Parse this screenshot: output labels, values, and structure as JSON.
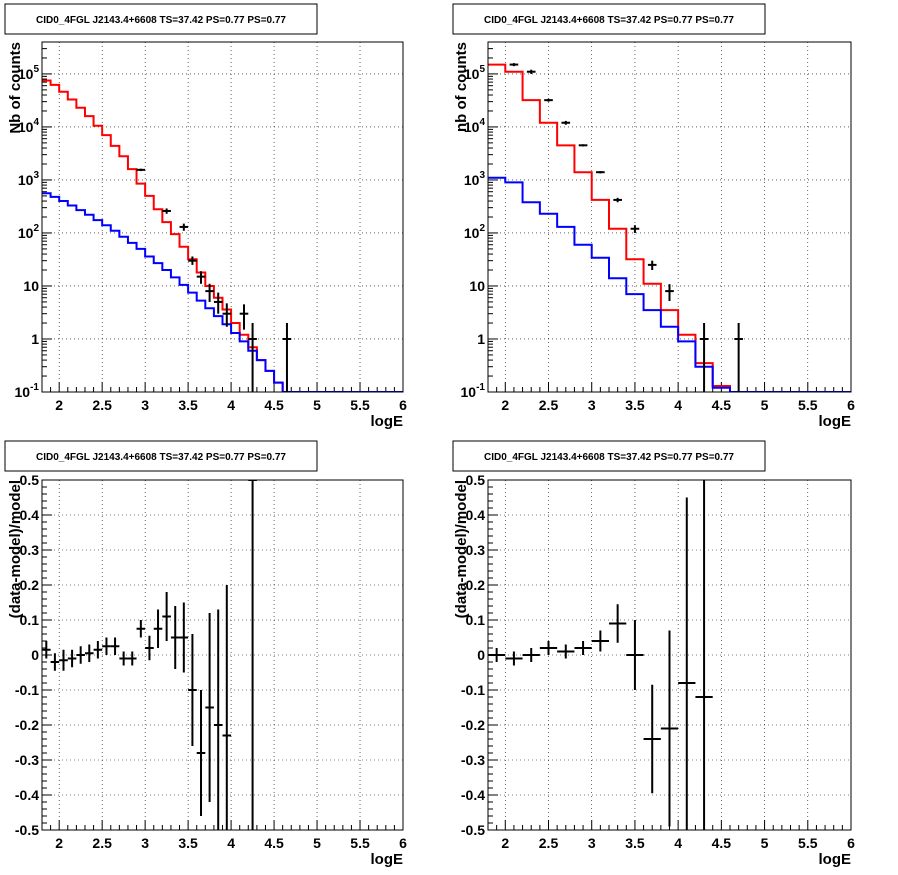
{
  "chart_data": [
    {
      "type": "step-histogram",
      "title": "CID0_4FGL J2143.4+6608 TS=37.42 PS=0.77 PS=0.77",
      "xlabel": "logE",
      "ylabel": "Nb of counts",
      "xlim": [
        1.8,
        6
      ],
      "ylim": [
        0.1,
        400000
      ],
      "y_scale": "log",
      "x_ticks": [
        "2",
        "2.5",
        "3",
        "3.5",
        "4",
        "4.5",
        "5",
        "5.5",
        "6"
      ],
      "y_ticks": [
        "10^-1",
        "1",
        "10",
        "10^2",
        "10^3",
        "10^4",
        "10^5"
      ],
      "grid": true,
      "bin_edges": [
        1.8,
        1.9,
        2.0,
        2.1,
        2.2,
        2.3,
        2.4,
        2.5,
        2.6,
        2.7,
        2.8,
        2.9,
        3.0,
        3.1,
        3.2,
        3.3,
        3.4,
        3.5,
        3.6,
        3.7,
        3.8,
        3.9,
        4.0,
        4.1,
        4.2,
        4.3,
        4.4,
        4.5,
        4.6,
        4.7,
        4.8,
        4.9,
        5.0,
        5.1,
        5.2,
        5.3,
        5.4,
        5.5,
        5.6,
        5.7,
        5.8,
        5.9,
        6.0
      ],
      "series": [
        {
          "color": "#ff0000",
          "values": [
            75000,
            62000,
            46000,
            33000,
            23000,
            16000,
            10500,
            7000,
            4400,
            2800,
            1600,
            850,
            500,
            280,
            160,
            95,
            55,
            32,
            18,
            10,
            6,
            3.6,
            2.0,
            1.2,
            0.7,
            0.4,
            0.25,
            0.15,
            0.1,
            0.1,
            0.1,
            0.1,
            0.1,
            0.1,
            0.1,
            0.1,
            0.1,
            0.1,
            0.1,
            0.1,
            0.1,
            0.1
          ]
        },
        {
          "color": "#0000ff",
          "values": [
            560,
            480,
            400,
            330,
            270,
            220,
            175,
            140,
            110,
            85,
            65,
            50,
            36,
            27,
            20,
            14.5,
            10.5,
            7.5,
            5.3,
            3.8,
            2.7,
            1.9,
            1.3,
            0.9,
            0.6,
            0.4,
            0.25,
            0.15,
            0.1,
            0.1,
            0.1,
            0.1,
            0.1,
            0.1,
            0.1,
            0.1,
            0.1,
            0.1,
            0.1,
            0.1,
            0.1,
            0.1
          ]
        }
      ],
      "data_points": [
        {
          "x": 2.95,
          "y": 1550,
          "ylo": 1470,
          "yhi": 1630
        },
        {
          "x": 3.25,
          "y": 260,
          "ylo": 230,
          "yhi": 290
        },
        {
          "x": 3.45,
          "y": 130,
          "ylo": 110,
          "yhi": 150
        },
        {
          "x": 3.55,
          "y": 30,
          "ylo": 25,
          "yhi": 36
        },
        {
          "x": 3.65,
          "y": 15,
          "ylo": 11,
          "yhi": 19
        },
        {
          "x": 3.75,
          "y": 8,
          "ylo": 5,
          "yhi": 11
        },
        {
          "x": 3.85,
          "y": 5,
          "ylo": 3,
          "yhi": 7.5
        },
        {
          "x": 3.95,
          "y": 3,
          "ylo": 1.7,
          "yhi": 4.7
        },
        {
          "x": 4.15,
          "y": 3,
          "ylo": 1.5,
          "yhi": 4.5
        },
        {
          "x": 4.25,
          "y": 1,
          "ylo": 0.1,
          "yhi": 2.0
        },
        {
          "x": 4.65,
          "y": 1,
          "ylo": 0.1,
          "yhi": 2.0
        }
      ]
    },
    {
      "type": "step-histogram",
      "title": "CID0_4FGL J2143.4+6608 TS=37.42 PS=0.77 PS=0.77",
      "xlabel": "logE",
      "ylabel": "nb of counts",
      "xlim": [
        1.8,
        6
      ],
      "ylim": [
        0.1,
        400000
      ],
      "y_scale": "log",
      "x_ticks": [
        "2",
        "2.5",
        "3",
        "3.5",
        "4",
        "4.5",
        "5",
        "5.5",
        "6"
      ],
      "y_ticks": [
        "10^-1",
        "1",
        "10",
        "10^2",
        "10^3",
        "10^4",
        "10^5"
      ],
      "grid": true,
      "bin_edges": [
        1.8,
        2.0,
        2.2,
        2.4,
        2.6,
        2.8,
        3.0,
        3.2,
        3.4,
        3.6,
        3.8,
        4.0,
        4.2,
        4.4,
        4.6,
        4.8,
        5.0,
        5.2,
        5.4,
        5.6,
        5.8,
        6.0
      ],
      "series": [
        {
          "color": "#ff0000",
          "values": [
            150000,
            110000,
            32000,
            12000,
            4500,
            1400,
            420,
            120,
            32,
            11,
            3.5,
            1.2,
            0.35,
            0.13,
            0.1,
            0.1,
            0.1,
            0.1,
            0.1,
            0.1,
            0.1
          ]
        },
        {
          "color": "#0000ff",
          "values": [
            1100,
            900,
            380,
            230,
            130,
            60,
            34,
            14,
            7,
            3.5,
            1.7,
            0.9,
            0.3,
            0.12,
            0.1,
            0.1,
            0.1,
            0.1,
            0.1,
            0.1,
            0.1
          ]
        }
      ],
      "data_points": [
        {
          "x": 2.1,
          "y": 150000,
          "ylo": 140000,
          "yhi": 160000
        },
        {
          "x": 2.3,
          "y": 110000,
          "ylo": 100000,
          "yhi": 120000
        },
        {
          "x": 2.5,
          "y": 32000,
          "ylo": 30000,
          "yhi": 34000
        },
        {
          "x": 2.7,
          "y": 12000,
          "ylo": 11000,
          "yhi": 13000
        },
        {
          "x": 2.9,
          "y": 4500,
          "ylo": 4300,
          "yhi": 4700
        },
        {
          "x": 3.1,
          "y": 1400,
          "ylo": 1330,
          "yhi": 1470
        },
        {
          "x": 3.3,
          "y": 420,
          "ylo": 380,
          "yhi": 460
        },
        {
          "x": 3.5,
          "y": 120,
          "ylo": 100,
          "yhi": 140
        },
        {
          "x": 3.7,
          "y": 25,
          "ylo": 20,
          "yhi": 30
        },
        {
          "x": 3.9,
          "y": 8,
          "ylo": 5.2,
          "yhi": 10.8
        },
        {
          "x": 4.3,
          "y": 1,
          "ylo": 0.1,
          "yhi": 2.0
        },
        {
          "x": 4.7,
          "y": 1,
          "ylo": 0.1,
          "yhi": 2.0
        }
      ]
    },
    {
      "type": "errorbar",
      "title": "CID0_4FGL J2143.4+6608 TS=37.42 PS=0.77 PS=0.77",
      "xlabel": "logE",
      "ylabel": "(data-model)/model",
      "xlim": [
        1.8,
        6
      ],
      "ylim": [
        -0.5,
        0.5
      ],
      "x_ticks": [
        "2",
        "2.5",
        "3",
        "3.5",
        "4",
        "4.5",
        "5",
        "5.5",
        "6"
      ],
      "y_ticks": [
        "-0.5",
        "-0.4",
        "-0.3",
        "-0.2",
        "-0.1",
        "0",
        "0.1",
        "0.2",
        "0.3",
        "0.4",
        "0.5"
      ],
      "grid": true,
      "points": [
        {
          "x": 1.85,
          "y": 0.015,
          "err": 0.025
        },
        {
          "x": 1.95,
          "y": -0.02,
          "err": 0.025
        },
        {
          "x": 2.05,
          "y": -0.015,
          "err": 0.03
        },
        {
          "x": 2.15,
          "y": -0.01,
          "err": 0.025
        },
        {
          "x": 2.25,
          "y": 0.0,
          "err": 0.025
        },
        {
          "x": 2.35,
          "y": 0.005,
          "err": 0.025
        },
        {
          "x": 2.45,
          "y": 0.015,
          "err": 0.025
        },
        {
          "x": 2.55,
          "y": 0.025,
          "err": 0.025
        },
        {
          "x": 2.65,
          "y": 0.025,
          "err": 0.025
        },
        {
          "x": 2.75,
          "y": -0.01,
          "err": 0.02
        },
        {
          "x": 2.85,
          "y": -0.01,
          "err": 0.02
        },
        {
          "x": 2.95,
          "y": 0.075,
          "err": 0.025
        },
        {
          "x": 3.05,
          "y": 0.02,
          "err": 0.035
        },
        {
          "x": 3.15,
          "y": 0.075,
          "err": 0.055
        },
        {
          "x": 3.25,
          "y": 0.11,
          "err": 0.07
        },
        {
          "x": 3.35,
          "y": 0.05,
          "err": 0.09
        },
        {
          "x": 3.45,
          "y": 0.05,
          "err": 0.1
        },
        {
          "x": 3.55,
          "y": -0.1,
          "err": 0.16
        },
        {
          "x": 3.65,
          "y": -0.28,
          "err": 0.18
        },
        {
          "x": 3.75,
          "y": -0.15,
          "err": 0.27
        },
        {
          "x": 3.85,
          "y": -0.2,
          "err": 0.33
        },
        {
          "x": 3.95,
          "y": -0.23,
          "err": 0.43
        },
        {
          "x": 4.25,
          "y": 0.5,
          "err": 1.0
        }
      ]
    },
    {
      "type": "errorbar",
      "title": "CID0_4FGL J2143.4+6608 TS=37.42 PS=0.77 PS=0.77",
      "xlabel": "logE",
      "ylabel": "(data-model)/model",
      "xlim": [
        1.8,
        6
      ],
      "ylim": [
        -0.5,
        0.5
      ],
      "x_ticks": [
        "2",
        "2.5",
        "3",
        "3.5",
        "4",
        "4.5",
        "5",
        "5.5",
        "6"
      ],
      "y_ticks": [
        "-0.5",
        "-0.4",
        "-0.3",
        "-0.2",
        "-0.1",
        "0",
        "0.1",
        "0.2",
        "0.3",
        "0.4",
        "0.5"
      ],
      "grid": true,
      "points": [
        {
          "x": 1.9,
          "y": 0.0,
          "err": 0.02
        },
        {
          "x": 2.1,
          "y": -0.01,
          "err": 0.02
        },
        {
          "x": 2.3,
          "y": 0.0,
          "err": 0.02
        },
        {
          "x": 2.5,
          "y": 0.02,
          "err": 0.02
        },
        {
          "x": 2.7,
          "y": 0.01,
          "err": 0.02
        },
        {
          "x": 2.9,
          "y": 0.02,
          "err": 0.02
        },
        {
          "x": 3.1,
          "y": 0.04,
          "err": 0.03
        },
        {
          "x": 3.3,
          "y": 0.09,
          "err": 0.055
        },
        {
          "x": 3.5,
          "y": 0.0,
          "err": 0.1
        },
        {
          "x": 3.7,
          "y": -0.24,
          "err": 0.155
        },
        {
          "x": 3.9,
          "y": -0.21,
          "err": 0.28
        },
        {
          "x": 4.1,
          "y": -0.08,
          "err": 0.53
        },
        {
          "x": 4.3,
          "y": -0.12,
          "err": 0.62
        }
      ]
    }
  ]
}
